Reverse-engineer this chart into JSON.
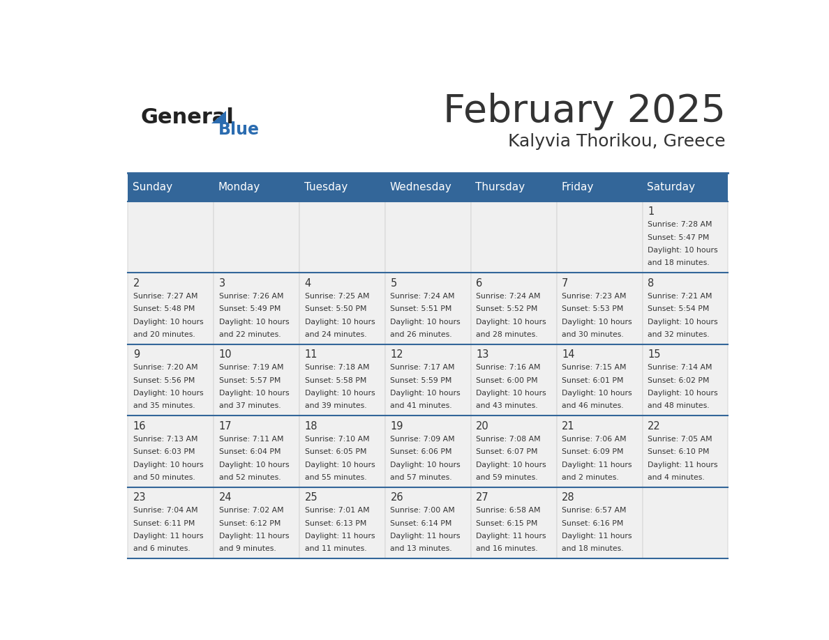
{
  "title": "February 2025",
  "subtitle": "Kalyvia Thorikou, Greece",
  "header_bg": "#336699",
  "header_text_color": "#FFFFFF",
  "cell_bg_light": "#F0F0F0",
  "day_names": [
    "Sunday",
    "Monday",
    "Tuesday",
    "Wednesday",
    "Thursday",
    "Friday",
    "Saturday"
  ],
  "title_color": "#333333",
  "subtitle_color": "#333333",
  "date_color": "#333333",
  "info_color": "#333333",
  "divider_color": "#336699",
  "logo_general_color": "#222222",
  "logo_blue_color": "#2B6CB0",
  "days": [
    {
      "day": 1,
      "col": 6,
      "row": 0,
      "sunrise": "7:28 AM",
      "sunset": "5:47 PM",
      "daylight_line1": "Daylight: 10 hours",
      "daylight_line2": "and 18 minutes."
    },
    {
      "day": 2,
      "col": 0,
      "row": 1,
      "sunrise": "7:27 AM",
      "sunset": "5:48 PM",
      "daylight_line1": "Daylight: 10 hours",
      "daylight_line2": "and 20 minutes."
    },
    {
      "day": 3,
      "col": 1,
      "row": 1,
      "sunrise": "7:26 AM",
      "sunset": "5:49 PM",
      "daylight_line1": "Daylight: 10 hours",
      "daylight_line2": "and 22 minutes."
    },
    {
      "day": 4,
      "col": 2,
      "row": 1,
      "sunrise": "7:25 AM",
      "sunset": "5:50 PM",
      "daylight_line1": "Daylight: 10 hours",
      "daylight_line2": "and 24 minutes."
    },
    {
      "day": 5,
      "col": 3,
      "row": 1,
      "sunrise": "7:24 AM",
      "sunset": "5:51 PM",
      "daylight_line1": "Daylight: 10 hours",
      "daylight_line2": "and 26 minutes."
    },
    {
      "day": 6,
      "col": 4,
      "row": 1,
      "sunrise": "7:24 AM",
      "sunset": "5:52 PM",
      "daylight_line1": "Daylight: 10 hours",
      "daylight_line2": "and 28 minutes."
    },
    {
      "day": 7,
      "col": 5,
      "row": 1,
      "sunrise": "7:23 AM",
      "sunset": "5:53 PM",
      "daylight_line1": "Daylight: 10 hours",
      "daylight_line2": "and 30 minutes."
    },
    {
      "day": 8,
      "col": 6,
      "row": 1,
      "sunrise": "7:21 AM",
      "sunset": "5:54 PM",
      "daylight_line1": "Daylight: 10 hours",
      "daylight_line2": "and 32 minutes."
    },
    {
      "day": 9,
      "col": 0,
      "row": 2,
      "sunrise": "7:20 AM",
      "sunset": "5:56 PM",
      "daylight_line1": "Daylight: 10 hours",
      "daylight_line2": "and 35 minutes."
    },
    {
      "day": 10,
      "col": 1,
      "row": 2,
      "sunrise": "7:19 AM",
      "sunset": "5:57 PM",
      "daylight_line1": "Daylight: 10 hours",
      "daylight_line2": "and 37 minutes."
    },
    {
      "day": 11,
      "col": 2,
      "row": 2,
      "sunrise": "7:18 AM",
      "sunset": "5:58 PM",
      "daylight_line1": "Daylight: 10 hours",
      "daylight_line2": "and 39 minutes."
    },
    {
      "day": 12,
      "col": 3,
      "row": 2,
      "sunrise": "7:17 AM",
      "sunset": "5:59 PM",
      "daylight_line1": "Daylight: 10 hours",
      "daylight_line2": "and 41 minutes."
    },
    {
      "day": 13,
      "col": 4,
      "row": 2,
      "sunrise": "7:16 AM",
      "sunset": "6:00 PM",
      "daylight_line1": "Daylight: 10 hours",
      "daylight_line2": "and 43 minutes."
    },
    {
      "day": 14,
      "col": 5,
      "row": 2,
      "sunrise": "7:15 AM",
      "sunset": "6:01 PM",
      "daylight_line1": "Daylight: 10 hours",
      "daylight_line2": "and 46 minutes."
    },
    {
      "day": 15,
      "col": 6,
      "row": 2,
      "sunrise": "7:14 AM",
      "sunset": "6:02 PM",
      "daylight_line1": "Daylight: 10 hours",
      "daylight_line2": "and 48 minutes."
    },
    {
      "day": 16,
      "col": 0,
      "row": 3,
      "sunrise": "7:13 AM",
      "sunset": "6:03 PM",
      "daylight_line1": "Daylight: 10 hours",
      "daylight_line2": "and 50 minutes."
    },
    {
      "day": 17,
      "col": 1,
      "row": 3,
      "sunrise": "7:11 AM",
      "sunset": "6:04 PM",
      "daylight_line1": "Daylight: 10 hours",
      "daylight_line2": "and 52 minutes."
    },
    {
      "day": 18,
      "col": 2,
      "row": 3,
      "sunrise": "7:10 AM",
      "sunset": "6:05 PM",
      "daylight_line1": "Daylight: 10 hours",
      "daylight_line2": "and 55 minutes."
    },
    {
      "day": 19,
      "col": 3,
      "row": 3,
      "sunrise": "7:09 AM",
      "sunset": "6:06 PM",
      "daylight_line1": "Daylight: 10 hours",
      "daylight_line2": "and 57 minutes."
    },
    {
      "day": 20,
      "col": 4,
      "row": 3,
      "sunrise": "7:08 AM",
      "sunset": "6:07 PM",
      "daylight_line1": "Daylight: 10 hours",
      "daylight_line2": "and 59 minutes."
    },
    {
      "day": 21,
      "col": 5,
      "row": 3,
      "sunrise": "7:06 AM",
      "sunset": "6:09 PM",
      "daylight_line1": "Daylight: 11 hours",
      "daylight_line2": "and 2 minutes."
    },
    {
      "day": 22,
      "col": 6,
      "row": 3,
      "sunrise": "7:05 AM",
      "sunset": "6:10 PM",
      "daylight_line1": "Daylight: 11 hours",
      "daylight_line2": "and 4 minutes."
    },
    {
      "day": 23,
      "col": 0,
      "row": 4,
      "sunrise": "7:04 AM",
      "sunset": "6:11 PM",
      "daylight_line1": "Daylight: 11 hours",
      "daylight_line2": "and 6 minutes."
    },
    {
      "day": 24,
      "col": 1,
      "row": 4,
      "sunrise": "7:02 AM",
      "sunset": "6:12 PM",
      "daylight_line1": "Daylight: 11 hours",
      "daylight_line2": "and 9 minutes."
    },
    {
      "day": 25,
      "col": 2,
      "row": 4,
      "sunrise": "7:01 AM",
      "sunset": "6:13 PM",
      "daylight_line1": "Daylight: 11 hours",
      "daylight_line2": "and 11 minutes."
    },
    {
      "day": 26,
      "col": 3,
      "row": 4,
      "sunrise": "7:00 AM",
      "sunset": "6:14 PM",
      "daylight_line1": "Daylight: 11 hours",
      "daylight_line2": "and 13 minutes."
    },
    {
      "day": 27,
      "col": 4,
      "row": 4,
      "sunrise": "6:58 AM",
      "sunset": "6:15 PM",
      "daylight_line1": "Daylight: 11 hours",
      "daylight_line2": "and 16 minutes."
    },
    {
      "day": 28,
      "col": 5,
      "row": 4,
      "sunrise": "6:57 AM",
      "sunset": "6:16 PM",
      "daylight_line1": "Daylight: 11 hours",
      "daylight_line2": "and 18 minutes."
    }
  ]
}
